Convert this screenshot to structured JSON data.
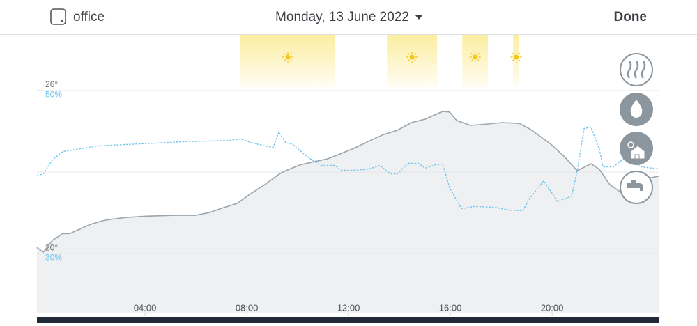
{
  "header": {
    "device": "office",
    "date": "Monday, 13 June 2022",
    "done": "Done"
  },
  "chart_data": {
    "type": "line",
    "xlim": [
      -0.25,
      24.19
    ],
    "xticks": [
      {
        "value": 4,
        "label": "04:00"
      },
      {
        "value": 8,
        "label": "08:00"
      },
      {
        "value": 12,
        "label": "12:00"
      },
      {
        "value": 16,
        "label": "16:00"
      },
      {
        "value": 20,
        "label": "20:00"
      }
    ],
    "ylim": [
      17.8,
      28.05
    ],
    "yticks": [
      {
        "value": 20,
        "label": "20°"
      },
      {
        "value": 23,
        "label": null
      },
      {
        "value": 26,
        "label": "26°"
      }
    ],
    "y2lim": [
      22.6,
      56.8
    ],
    "y2ticks": [
      {
        "value": 30,
        "label": "30%"
      },
      {
        "value": 50,
        "label": "50%"
      }
    ],
    "sun_periods": [
      [
        7.75,
        11.48
      ],
      [
        13.51,
        15.48
      ],
      [
        16.47,
        17.48
      ],
      [
        18.47,
        18.71
      ]
    ],
    "series": [
      {
        "color": "#9aa5ad",
        "fill": true,
        "x": [
          -0.25,
          0,
          0.36,
          0.77,
          1.04,
          1.86,
          2.41,
          3.23,
          4.05,
          5.15,
          5.97,
          6.52,
          7.07,
          7.62,
          8.16,
          8.71,
          9.26,
          9.53,
          10.08,
          10.63,
          11.18,
          11.73,
          12.27,
          12.82,
          13.37,
          13.92,
          14.47,
          15.01,
          15.7,
          15.97,
          16.25,
          16.79,
          17.48,
          18.03,
          18.71,
          19.12,
          19.95,
          20.49,
          20.99,
          21.53,
          21.86,
          22.27,
          22.96,
          23.51,
          24.19
        ],
        "values": [
          20.23,
          20.05,
          20.49,
          20.74,
          20.74,
          21.08,
          21.23,
          21.33,
          21.38,
          21.41,
          21.41,
          21.51,
          21.69,
          21.85,
          22.21,
          22.54,
          22.92,
          23.05,
          23.26,
          23.38,
          23.49,
          23.69,
          23.9,
          24.15,
          24.38,
          24.54,
          24.82,
          24.95,
          25.23,
          25.21,
          24.9,
          24.72,
          24.77,
          24.82,
          24.79,
          24.59,
          24.03,
          23.56,
          23.05,
          23.31,
          23.1,
          22.54,
          22.1,
          22.72,
          22.85
        ]
      },
      {
        "color": "#6cc4ef",
        "axis": "y2",
        "dashed": true,
        "x": [
          -0.25,
          0,
          0.36,
          0.77,
          1.32,
          2.14,
          3.23,
          4.33,
          5.42,
          6.52,
          7.34,
          7.75,
          8.16,
          8.71,
          9.04,
          9.26,
          9.53,
          9.81,
          10.36,
          10.9,
          11.45,
          11.73,
          12.27,
          12.82,
          13.23,
          13.64,
          13.92,
          14.33,
          14.74,
          15.01,
          15.42,
          15.7,
          15.97,
          16.44,
          16.93,
          17.75,
          18.3,
          18.85,
          19.12,
          19.67,
          20.22,
          20.77,
          20.99,
          21.26,
          21.53,
          21.86,
          22.0,
          22.41,
          22.68,
          22.96,
          23.51,
          24.19
        ],
        "values": [
          39.49,
          39.74,
          41.45,
          42.48,
          42.74,
          43.16,
          43.33,
          43.5,
          43.68,
          43.76,
          43.85,
          44.02,
          43.59,
          43.16,
          42.99,
          44.87,
          43.59,
          43.33,
          41.88,
          40.77,
          40.77,
          40.17,
          40.17,
          40.34,
          40.77,
          39.74,
          39.74,
          41.03,
          41.03,
          40.43,
          40.85,
          40.94,
          38.03,
          35.47,
          35.73,
          35.64,
          35.3,
          35.21,
          36.75,
          38.89,
          36.32,
          37.01,
          40.17,
          45.3,
          45.47,
          42.74,
          40.6,
          40.6,
          41.28,
          41.88,
          40.6,
          40.34
        ]
      }
    ]
  }
}
